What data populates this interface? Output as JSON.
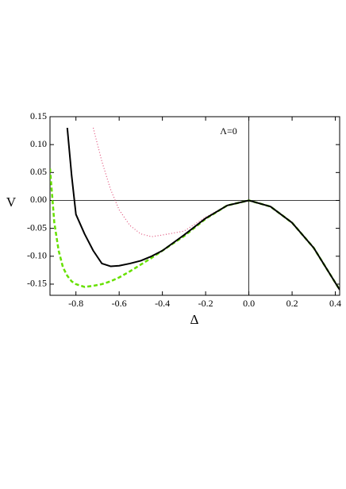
{
  "chart_data": {
    "type": "line",
    "x_label": "Δ",
    "y_label": "V",
    "annotation": "Λ=0",
    "x": [
      -0.92,
      -0.9,
      -0.88,
      -0.86,
      -0.84,
      -0.82,
      -0.8,
      -0.76,
      -0.72,
      -0.68,
      -0.64,
      -0.6,
      -0.55,
      -0.5,
      -0.45,
      -0.4,
      -0.3,
      -0.2,
      -0.1,
      0,
      0.1,
      0.2,
      0.3,
      0.42
    ],
    "series": [
      {
        "color": "#000000",
        "dash": "none",
        "width": 2,
        "values": [
          null,
          null,
          null,
          null,
          0.13,
          0.045,
          -0.025,
          -0.06,
          -0.09,
          -0.113,
          -0.118,
          -0.117,
          -0.113,
          -0.108,
          -0.1,
          -0.09,
          -0.062,
          -0.032,
          -0.009,
          0,
          -0.011,
          -0.04,
          -0.085,
          -0.16
        ]
      },
      {
        "color": "#66e000",
        "dash": "5,3",
        "width": 2.5,
        "values": [
          0.057,
          -0.04,
          -0.09,
          -0.12,
          -0.135,
          -0.145,
          -0.15,
          -0.155,
          -0.153,
          -0.15,
          -0.145,
          -0.138,
          -0.127,
          -0.115,
          -0.103,
          -0.09,
          -0.064,
          -0.033,
          -0.009,
          0,
          -0.011,
          -0.04,
          -0.085,
          -0.16
        ]
      },
      {
        "color": "#e0507a",
        "dash": "1,2.5",
        "width": 1.2,
        "values": [
          null,
          null,
          null,
          null,
          null,
          null,
          null,
          null,
          0.13,
          0.07,
          0.02,
          -0.017,
          -0.045,
          -0.06,
          -0.065,
          -0.062,
          -0.055,
          -0.03,
          -0.009,
          0,
          -0.011,
          -0.04,
          -0.085,
          -0.16
        ]
      }
    ],
    "xlim": [
      -0.92,
      0.42
    ],
    "ylim": [
      -0.17,
      0.15
    ],
    "xticks": [
      -0.8,
      -0.6,
      -0.4,
      -0.2,
      {
        "value": 0,
        "label": "0.0"
      },
      0.2,
      0.4
    ],
    "yticks": [
      0.15,
      {
        "value": 0.1,
        "label": "0.10"
      },
      0.05,
      {
        "value": 0,
        "label": "0.00"
      },
      -0.05,
      {
        "value": -0.1,
        "label": "-0.10"
      },
      -0.15
    ]
  }
}
